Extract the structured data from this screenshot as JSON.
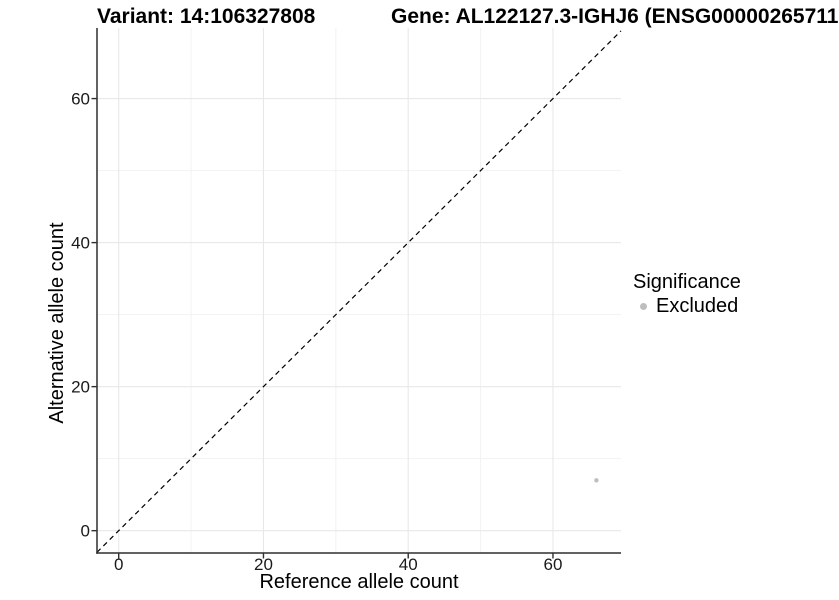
{
  "header": {
    "variant_title": "Variant: 14:106327808",
    "gene_title": "Gene: AL122127.3-IGHJ6 (ENSG00000265711"
  },
  "chart_data": {
    "type": "scatter",
    "xlabel": "Reference allele count",
    "ylabel": "Alternative allele count",
    "xlim": [
      -3.0,
      69.4
    ],
    "ylim": [
      -3.1,
      69.8
    ],
    "xticks": [
      0,
      20,
      40,
      60
    ],
    "yticks": [
      0,
      20,
      40,
      60
    ],
    "minor_ticks_x": [
      10,
      30,
      50
    ],
    "minor_ticks_y": [
      10,
      30,
      50
    ],
    "grid": {
      "major": true,
      "minor": true
    },
    "points": [
      {
        "x": 66,
        "y": 7,
        "significance": "Excluded"
      }
    ],
    "point_color": "#BEBEBE",
    "identity_line": {
      "slope": 1,
      "intercept": 0,
      "style": "dashed",
      "color": "#000000"
    },
    "legend": {
      "title": "Significance",
      "position": "right",
      "entries": [
        {
          "label": "Excluded",
          "color": "#BEBEBE"
        }
      ]
    }
  },
  "colors": {
    "background": "#FFFFFF",
    "axis_line": "#2F2F2F",
    "tick_label": "#1A1A1A",
    "grid_major": "#E8E8E8",
    "grid_minor": "#F2F2F2"
  }
}
